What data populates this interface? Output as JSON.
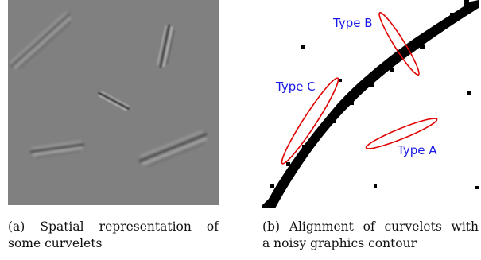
{
  "figure": {
    "panel_a": {
      "caption_prefix": "(a)",
      "caption_line1_words": [
        "Spatial",
        "representation",
        "of"
      ],
      "caption_line2": "some curvelets",
      "background_color": "#808080"
    },
    "panel_b": {
      "caption_prefix": "(b)",
      "caption_line1_words": [
        "Alignment",
        "of",
        "curvelets",
        "with"
      ],
      "caption_line2": "a noisy graphics contour",
      "labels": {
        "type_a": "Type A",
        "type_b": "Type B",
        "type_c": "Type C"
      },
      "label_color": "#1a1ae6",
      "ellipse_color": "#e00000",
      "contour_color": "#000000"
    }
  }
}
